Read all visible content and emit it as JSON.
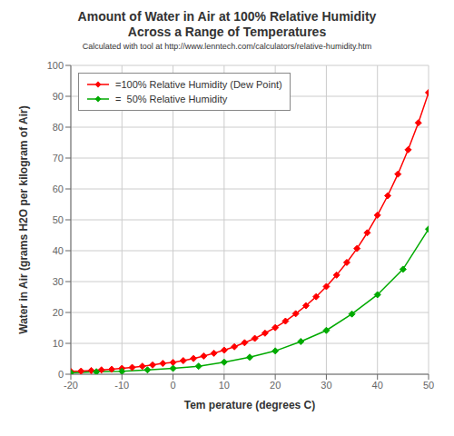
{
  "chart_data": {
    "type": "line",
    "title": "Amount of Water in Air at 100% Relative Humidity\nAcross a Range of Temperatures",
    "subtitle": "Calculated with tool at http://www.lenntech.com/calculators/relative-humidity.htm",
    "x_label": "Tem perature (degrees C)",
    "y_label": "Water in Air (grams H2O per kilogram of Air)",
    "xlim": [
      -20,
      50
    ],
    "ylim": [
      0,
      100
    ],
    "xticks": [
      -20,
      -10,
      0,
      10,
      20,
      30,
      40,
      50
    ],
    "yticks": [
      0,
      10,
      20,
      30,
      40,
      50,
      60,
      70,
      80,
      90,
      100
    ],
    "grid": true,
    "legend": "upper left",
    "series": [
      {
        "name": "=100% Relative Humidity (Dew Point)",
        "color": "#FF0000",
        "marker": "diamond",
        "line_style": "solid",
        "x": [
          -20,
          -18,
          -16,
          -14,
          -12,
          -10,
          -8,
          -6,
          -4,
          -2,
          0,
          2,
          4,
          6,
          8,
          10,
          12,
          14,
          16,
          18,
          20,
          22,
          24,
          26,
          28,
          30,
          32,
          34,
          36,
          38,
          40,
          42,
          44,
          46,
          48,
          50
        ],
        "values": [
          0.89,
          1.0,
          1.2,
          1.4,
          1.6,
          1.9,
          2.2,
          2.6,
          3.0,
          3.5,
          3.8,
          4.4,
          5.1,
          5.9,
          6.8,
          7.8,
          8.9,
          10.2,
          11.6,
          13.3,
          15.1,
          17.2,
          19.6,
          22.2,
          25.1,
          28.4,
          32.1,
          36.2,
          40.7,
          45.8,
          51.5,
          57.8,
          64.8,
          72.7,
          81.4,
          91.2
        ]
      },
      {
        "name": "=  50% Relative Humidity",
        "color": "#00AA00",
        "marker": "diamond",
        "line_style": "solid",
        "x": [
          -20,
          -15,
          -10,
          -5,
          0,
          5,
          10,
          15,
          20,
          25,
          30,
          35,
          40,
          45,
          50
        ],
        "values": [
          0.45,
          0.8,
          0.95,
          1.4,
          1.9,
          2.6,
          3.9,
          5.5,
          7.55,
          10.6,
          14.2,
          19.5,
          25.75,
          34.0,
          47.0
        ]
      }
    ]
  }
}
